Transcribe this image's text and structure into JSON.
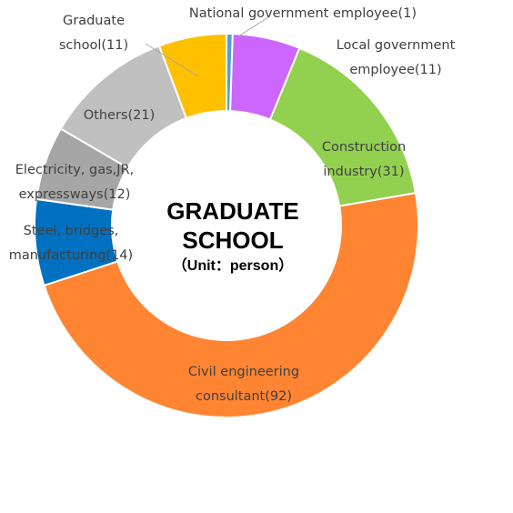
{
  "chart_data": {
    "type": "pie",
    "donut": true,
    "center_text": {
      "line1": "GRADUATE",
      "line2": "SCHOOL",
      "unit": "（Unit：person）"
    },
    "slices": [
      {
        "name": "National government employee",
        "value": 1,
        "color": "#5b9bd5",
        "label_lines": [
          "National government employee(1)"
        ]
      },
      {
        "name": "Local government employee",
        "value": 11,
        "color": "#cc66ff",
        "label_lines": [
          "Local government",
          "employee(11)"
        ]
      },
      {
        "name": "Construction industry",
        "value": 31,
        "color": "#92d050",
        "label_lines": [
          "Construction",
          "industry(31)"
        ]
      },
      {
        "name": "Civil engineering consultant",
        "value": 92,
        "color": "#ff8533",
        "label_lines": [
          "Civil engineering",
          "consultant(92)"
        ]
      },
      {
        "name": "Steel, bridges, manufacturing",
        "value": 14,
        "color": "#0070c0",
        "label_lines": [
          "Steel, bridges,",
          "manufacturing(14)"
        ]
      },
      {
        "name": "Electricity, gas, JR, expressways",
        "value": 12,
        "color": "#a6a6a6",
        "label_lines": [
          "Electricity, gas,JR,",
          "expressways(12)"
        ]
      },
      {
        "name": "Others",
        "value": 21,
        "color": "#c0c0c0",
        "label_lines": [
          "Others(21)"
        ]
      },
      {
        "name": "Graduate school",
        "value": 11,
        "color": "#ffc000",
        "label_lines": [
          "Graduate",
          "school(11)"
        ]
      }
    ],
    "start_angle_deg": 0,
    "direction": "clockwise",
    "legend": "none"
  }
}
